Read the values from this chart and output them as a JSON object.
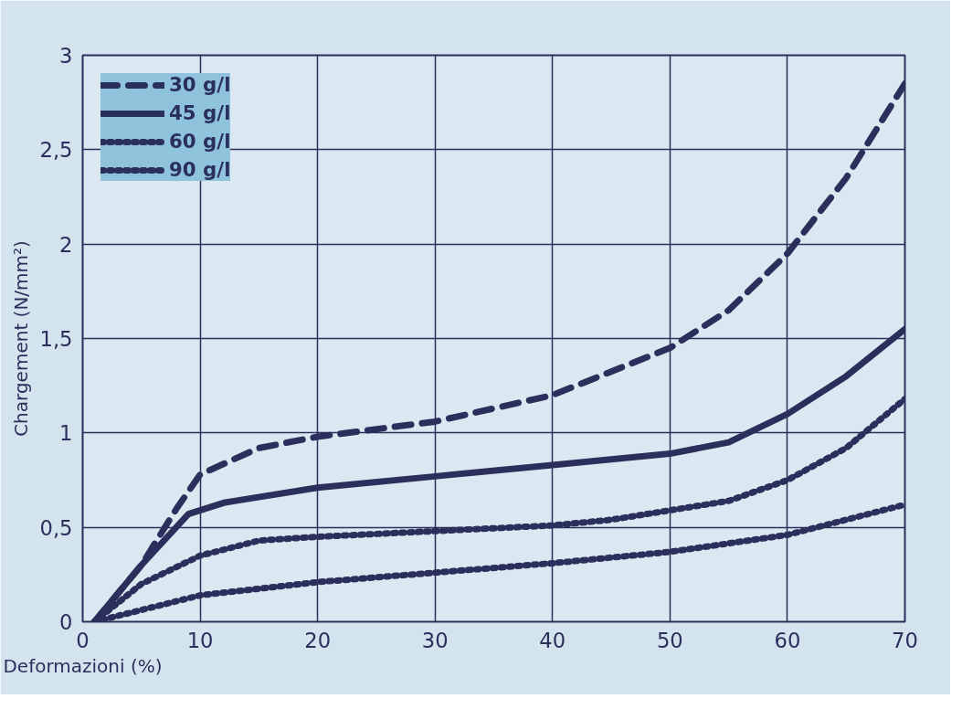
{
  "chart_data": {
    "type": "line",
    "xlabel": "Deformazioni (%)",
    "ylabel": "Chargement (N/mm²)",
    "xlim": [
      0,
      70
    ],
    "ylim": [
      0,
      3
    ],
    "xticks": [
      0,
      10,
      20,
      30,
      40,
      50,
      60,
      70
    ],
    "yticks": [
      0,
      {
        "value": 0.5,
        "label": "0,5"
      },
      1,
      {
        "value": 1.5,
        "label": "1,5"
      },
      2,
      {
        "value": 2.5,
        "label": "2,5"
      },
      3
    ],
    "grid": true,
    "legend": "top left",
    "marker": "none",
    "series": [
      {
        "name": "30 g/l",
        "color": "#2b2f5c",
        "line_style": "dashed",
        "x": [
          1,
          5,
          8,
          10,
          15,
          20,
          30,
          40,
          50,
          55,
          60,
          65,
          70
        ],
        "values": [
          0,
          0.3,
          0.6,
          0.78,
          0.92,
          0.98,
          1.06,
          1.2,
          1.45,
          1.65,
          1.95,
          2.35,
          2.85
        ]
      },
      {
        "name": "45 g/l",
        "color": "#2b2f5c",
        "line_style": "solid",
        "x": [
          1,
          5,
          9,
          12,
          20,
          30,
          40,
          50,
          55,
          60,
          65,
          70
        ],
        "values": [
          0,
          0.3,
          0.57,
          0.63,
          0.71,
          0.77,
          0.83,
          0.89,
          0.95,
          1.1,
          1.3,
          1.55
        ]
      },
      {
        "name": "60 g/l",
        "color": "#2b2f5c",
        "line_style": "dotted",
        "x": [
          1,
          5,
          10,
          15,
          20,
          30,
          40,
          45,
          50,
          55,
          60,
          65,
          70
        ],
        "values": [
          0,
          0.2,
          0.35,
          0.43,
          0.45,
          0.48,
          0.51,
          0.54,
          0.59,
          0.64,
          0.75,
          0.92,
          1.18
        ]
      },
      {
        "name": "90 g/l",
        "color": "#2b2f5c",
        "line_style": "dotted",
        "x": [
          1,
          10,
          20,
          30,
          40,
          50,
          60,
          70
        ],
        "values": [
          0,
          0.14,
          0.21,
          0.26,
          0.31,
          0.37,
          0.46,
          0.62
        ]
      }
    ]
  }
}
